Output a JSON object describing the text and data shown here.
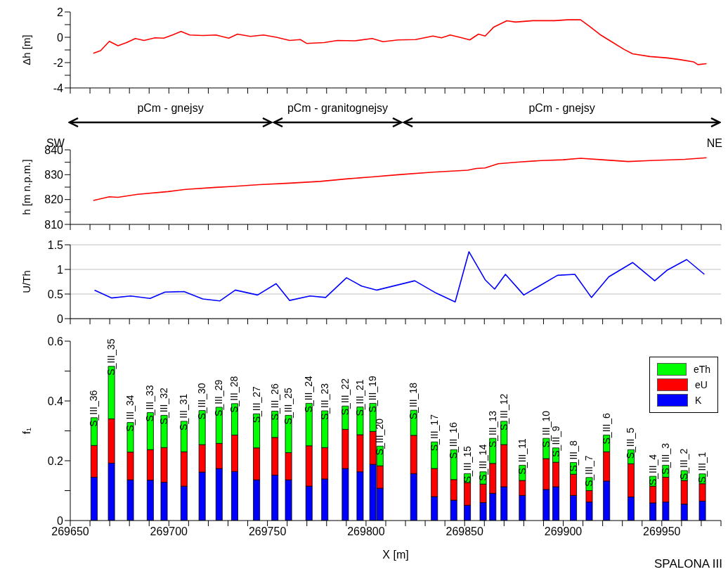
{
  "chart_data": [
    {
      "type": "line",
      "ylabel": "Δh [m]",
      "xlim": [
        269650,
        269980
      ],
      "ylim": [
        -4,
        2
      ],
      "tick_labels": "y",
      "xticks": [
        269650,
        {
          "value": 269660,
          "label": null
        },
        {
          "value": 269670,
          "label": null
        },
        {
          "value": 269680,
          "label": null
        },
        {
          "value": 269690,
          "label": null
        },
        269700,
        {
          "value": 269710,
          "label": null
        },
        {
          "value": 269720,
          "label": null
        },
        {
          "value": 269730,
          "label": null
        },
        {
          "value": 269740,
          "label": null
        },
        269750,
        {
          "value": 269760,
          "label": null
        },
        {
          "value": 269770,
          "label": null
        },
        {
          "value": 269780,
          "label": null
        },
        {
          "value": 269790,
          "label": null
        },
        269800,
        {
          "value": 269810,
          "label": null
        },
        {
          "value": 269820,
          "label": null
        },
        {
          "value": 269830,
          "label": null
        },
        {
          "value": 269840,
          "label": null
        },
        269850,
        {
          "value": 269860,
          "label": null
        },
        {
          "value": 269870,
          "label": null
        },
        {
          "value": 269880,
          "label": null
        },
        {
          "value": 269890,
          "label": null
        },
        269900,
        {
          "value": 269910,
          "label": null
        },
        {
          "value": 269920,
          "label": null
        },
        {
          "value": 269930,
          "label": null
        },
        {
          "value": 269940,
          "label": null
        },
        269950,
        {
          "value": 269960,
          "label": null
        },
        {
          "value": 269970,
          "label": null
        },
        {
          "value": 269980,
          "label": null
        }
      ],
      "yticks": [
        -4,
        {
          "value": -3,
          "label": null
        },
        -2,
        {
          "value": -1,
          "label": null
        },
        0,
        {
          "value": 1,
          "label": null
        },
        2
      ],
      "annotations": [
        "pCm - gnejsy",
        "pCm - granitognejsy",
        "pCm - gnejsy"
      ],
      "series": [
        {
          "color": "#ff0000",
          "x": [
            269661.7,
            269665.4,
            269669.8,
            269674.2,
            269678.6,
            269683,
            269687.4,
            269693,
            269697.4,
            269701.8,
            269706.2,
            269710.6,
            269717.2,
            269723.8,
            269730.4,
            269734.8,
            269741.4,
            269748,
            269754.6,
            269761.2,
            269766.7,
            269770,
            269778.8,
            269785.5,
            269794.3,
            269803.1,
            269808.6,
            269816.3,
            269825.1,
            269833.9,
            269838.3,
            269842.7,
            269849.3,
            269852.6,
            269857,
            269860.4,
            269864.8,
            269871.4,
            269875.8,
            269884.6,
            269895.6,
            269902.2,
            269908.8,
            269913.2,
            269918.7,
            269924.2,
            269930.8,
            269935.2,
            269944,
            269952.9,
            269959.5,
            269966.1,
            269968.3,
            269972.7
          ],
          "values": [
            -1.27,
            -1.06,
            -0.32,
            -0.67,
            -0.42,
            -0.1,
            -0.25,
            -0.04,
            -0.07,
            0.18,
            0.46,
            0.18,
            0.14,
            0.18,
            -0.07,
            0.25,
            0.07,
            0.18,
            0,
            -0.25,
            -0.18,
            -0.49,
            -0.42,
            -0.25,
            -0.28,
            -0.1,
            -0.35,
            -0.21,
            -0.18,
            0.1,
            -0.04,
            0.18,
            -0.07,
            -0.21,
            0.25,
            0.1,
            0.81,
            1.31,
            1.2,
            1.31,
            1.31,
            1.38,
            1.38,
            0.88,
            0.21,
            -0.32,
            -0.95,
            -1.31,
            -1.52,
            -1.63,
            -1.77,
            -1.94,
            -2.16,
            -2.08
          ]
        }
      ]
    },
    {
      "type": "line",
      "ylabel": "h [m n.p.m.]",
      "xlim": [
        269650,
        269980
      ],
      "ylim": [
        810,
        840
      ],
      "tick_labels": "y",
      "xticks": [
        269650,
        {
          "value": 269660,
          "label": null
        },
        {
          "value": 269670,
          "label": null
        },
        {
          "value": 269680,
          "label": null
        },
        {
          "value": 269690,
          "label": null
        },
        269700,
        {
          "value": 269710,
          "label": null
        },
        {
          "value": 269720,
          "label": null
        },
        {
          "value": 269730,
          "label": null
        },
        {
          "value": 269740,
          "label": null
        },
        269750,
        {
          "value": 269760,
          "label": null
        },
        {
          "value": 269770,
          "label": null
        },
        {
          "value": 269780,
          "label": null
        },
        {
          "value": 269790,
          "label": null
        },
        269800,
        {
          "value": 269810,
          "label": null
        },
        {
          "value": 269820,
          "label": null
        },
        {
          "value": 269830,
          "label": null
        },
        {
          "value": 269840,
          "label": null
        },
        269850,
        {
          "value": 269860,
          "label": null
        },
        {
          "value": 269870,
          "label": null
        },
        {
          "value": 269880,
          "label": null
        },
        {
          "value": 269890,
          "label": null
        },
        269900,
        {
          "value": 269910,
          "label": null
        },
        {
          "value": 269920,
          "label": null
        },
        {
          "value": 269930,
          "label": null
        },
        {
          "value": 269940,
          "label": null
        },
        269950,
        {
          "value": 269960,
          "label": null
        },
        {
          "value": 269970,
          "label": null
        },
        {
          "value": 269980,
          "label": null
        }
      ],
      "yticks": [
        810,
        {
          "value": 815,
          "label": null
        },
        820,
        {
          "value": 825,
          "label": null
        },
        830,
        {
          "value": 835,
          "label": null
        },
        840
      ],
      "annotations": [
        "SW",
        "NE"
      ],
      "series": [
        {
          "color": "#ff0000",
          "x": [
            269661.7,
            269669.8,
            269674.2,
            269684.1,
            269699.6,
            269708.4,
            269723.8,
            269732.6,
            269745.8,
            269761.2,
            269776.7,
            269789.9,
            269803.1,
            269816.3,
            269833.9,
            269851.5,
            269855.9,
            269860.4,
            269867,
            269878,
            269889,
            269900,
            269908.8,
            269919.8,
            269933,
            269944,
            269961.7,
            269972.7
          ],
          "values": [
            819.6,
            821.1,
            820.9,
            822.1,
            823.2,
            824.1,
            824.9,
            825.3,
            826.0,
            826.6,
            827.3,
            828.3,
            829.1,
            830.0,
            831.0,
            831.8,
            832.5,
            832.7,
            834.4,
            835.1,
            835.7,
            836.0,
            836.6,
            836.0,
            835.3,
            835.7,
            836.2,
            836.8
          ]
        }
      ]
    },
    {
      "type": "line",
      "ylabel": "U/Th",
      "xlim": [
        269650,
        269980
      ],
      "ylim": [
        0,
        1.5
      ],
      "tick_labels": "y",
      "grid": "y",
      "xticks": [
        269650,
        {
          "value": 269660,
          "label": null
        },
        {
          "value": 269670,
          "label": null
        },
        {
          "value": 269680,
          "label": null
        },
        {
          "value": 269690,
          "label": null
        },
        269700,
        {
          "value": 269710,
          "label": null
        },
        {
          "value": 269720,
          "label": null
        },
        {
          "value": 269730,
          "label": null
        },
        {
          "value": 269740,
          "label": null
        },
        269750,
        {
          "value": 269760,
          "label": null
        },
        {
          "value": 269770,
          "label": null
        },
        {
          "value": 269780,
          "label": null
        },
        {
          "value": 269790,
          "label": null
        },
        269800,
        {
          "value": 269810,
          "label": null
        },
        {
          "value": 269820,
          "label": null
        },
        {
          "value": 269830,
          "label": null
        },
        {
          "value": 269840,
          "label": null
        },
        269850,
        {
          "value": 269860,
          "label": null
        },
        {
          "value": 269870,
          "label": null
        },
        {
          "value": 269880,
          "label": null
        },
        {
          "value": 269890,
          "label": null
        },
        269900,
        {
          "value": 269910,
          "label": null
        },
        {
          "value": 269920,
          "label": null
        },
        {
          "value": 269930,
          "label": null
        },
        {
          "value": 269940,
          "label": null
        },
        269950,
        {
          "value": 269960,
          "label": null
        },
        {
          "value": 269970,
          "label": null
        },
        {
          "value": 269980,
          "label": null
        }
      ],
      "yticks": [
        0,
        0.5,
        1,
        1.5
      ],
      "series": [
        {
          "color": "#0000ff",
          "x": [
            269662.3,
            269670.9,
            269680.6,
            269690.5,
            269698,
            269707.7,
            269717.2,
            269725.8,
            269733.7,
            269745,
            269754.4,
            269761.2,
            269771.6,
            269779.5,
            269790.1,
            269797.8,
            269805.5,
            269824.7,
            269835.5,
            269845.2,
            269852.2,
            269860.4,
            269865.2,
            269870.7,
            269880,
            269897.1,
            269905.9,
            269914.3,
            269923.1,
            269935.2,
            269946.4,
            269952.9,
            269962.6,
            269971.6
          ],
          "values": [
            0.58,
            0.42,
            0.46,
            0.41,
            0.54,
            0.55,
            0.4,
            0.36,
            0.58,
            0.48,
            0.71,
            0.37,
            0.46,
            0.43,
            0.83,
            0.66,
            0.58,
            0.77,
            0.52,
            0.34,
            1.36,
            0.79,
            0.6,
            0.9,
            0.48,
            0.88,
            0.9,
            0.43,
            0.85,
            1.14,
            0.77,
            0.99,
            1.2,
            0.9
          ]
        }
      ]
    },
    {
      "type": "bar",
      "stacked": true,
      "ylabel": "f₁",
      "xlabel": "X [m]",
      "xlim": [
        269650,
        269980
      ],
      "ylim": [
        0,
        0.6
      ],
      "legend": "top right",
      "xticks": [
        269650,
        {
          "value": 269660,
          "label": null
        },
        {
          "value": 269670,
          "label": null
        },
        {
          "value": 269680,
          "label": null
        },
        {
          "value": 269690,
          "label": null
        },
        269700,
        {
          "value": 269710,
          "label": null
        },
        {
          "value": 269720,
          "label": null
        },
        {
          "value": 269730,
          "label": null
        },
        {
          "value": 269740,
          "label": null
        },
        269750,
        {
          "value": 269760,
          "label": null
        },
        {
          "value": 269770,
          "label": null
        },
        {
          "value": 269780,
          "label": null
        },
        {
          "value": 269790,
          "label": null
        },
        269800,
        {
          "value": 269810,
          "label": null
        },
        {
          "value": 269820,
          "label": null
        },
        {
          "value": 269830,
          "label": null
        },
        {
          "value": 269840,
          "label": null
        },
        269850,
        {
          "value": 269860,
          "label": null
        },
        {
          "value": 269870,
          "label": null
        },
        {
          "value": 269880,
          "label": null
        },
        {
          "value": 269890,
          "label": null
        },
        269900,
        {
          "value": 269910,
          "label": null
        },
        {
          "value": 269920,
          "label": null
        },
        {
          "value": 269930,
          "label": null
        },
        {
          "value": 269940,
          "label": null
        },
        269950,
        {
          "value": 269960,
          "label": null
        },
        {
          "value": 269970,
          "label": null
        },
        {
          "value": 269980,
          "label": null
        }
      ],
      "yticks": [
        0,
        {
          "value": 0.1,
          "label": null
        },
        0.2,
        {
          "value": 0.3,
          "label": null
        },
        0.4,
        {
          "value": 0.5,
          "label": null
        },
        0.6
      ],
      "x": [
        269661.9,
        269670.7,
        269680.3,
        269690.4,
        269697.4,
        269707.5,
        269716.7,
        269725.3,
        269733.2,
        269744.3,
        269753.6,
        269760.5,
        269770.9,
        269778.9,
        269789.3,
        269796.8,
        269803.3,
        269806.9,
        269824,
        269834.5,
        269844.3,
        269851.2,
        269859.2,
        269864.1,
        269869.8,
        269879.1,
        269891.2,
        269896.1,
        269905,
        269913,
        269921.8,
        269934.2,
        269945.3,
        269951.8,
        269961.2,
        269970.4
      ],
      "series": [
        {
          "name": "K",
          "color": "#0000ff",
          "values": [
            0.145,
            0.192,
            0.136,
            0.135,
            0.128,
            0.115,
            0.162,
            0.174,
            0.164,
            0.136,
            0.152,
            0.136,
            0.115,
            0.139,
            0.174,
            0.163,
            0.188,
            0.108,
            0.157,
            0.08,
            0.068,
            0.051,
            0.06,
            0.091,
            0.113,
            0.084,
            0.104,
            0.113,
            0.084,
            0.062,
            0.132,
            0.079,
            0.059,
            0.062,
            0.055,
            0.065
          ]
        },
        {
          "name": "eU",
          "color": "#ff0000",
          "values": [
            0.106,
            0.148,
            0.093,
            0.102,
            0.116,
            0.115,
            0.092,
            0.084,
            0.122,
            0.107,
            0.126,
            0.091,
            0.135,
            0.105,
            0.131,
            0.124,
            0.11,
            0.075,
            0.128,
            0.094,
            0.069,
            0.076,
            0.062,
            0.1,
            0.141,
            0.05,
            0.103,
            0.082,
            0.071,
            0.038,
            0.098,
            0.111,
            0.056,
            0.083,
            0.079,
            0.058
          ]
        },
        {
          "name": "eTh",
          "color": "#00ff00",
          "values": [
            0.093,
            0.176,
            0.099,
            0.124,
            0.108,
            0.102,
            0.114,
            0.121,
            0.105,
            0.114,
            0.088,
            0.125,
            0.142,
            0.123,
            0.078,
            0.093,
            0.094,
            0.066,
            0.084,
            0.089,
            0.1,
            0.03,
            0.041,
            0.084,
            0.078,
            0.051,
            0.068,
            0.048,
            0.039,
            0.044,
            0.056,
            0.047,
            0.033,
            0.04,
            0.033,
            0.033
          ]
        }
      ],
      "annotations": [
        {
          "text": "S_III_36",
          "x": 269661.9,
          "y": 0.344
        },
        {
          "text": "S_III_35",
          "x": 269670.7,
          "y": 0.516
        },
        {
          "text": "S_III_34",
          "x": 269680.3,
          "y": 0.328
        },
        {
          "text": "S_III_33",
          "x": 269690.4,
          "y": 0.361
        },
        {
          "text": "S_III_32",
          "x": 269697.4,
          "y": 0.352
        },
        {
          "text": "S_III_31",
          "x": 269707.5,
          "y": 0.332
        },
        {
          "text": "S_III_30",
          "x": 269716.7,
          "y": 0.368
        },
        {
          "text": "S_III_29",
          "x": 269725.3,
          "y": 0.379
        },
        {
          "text": "S_III_28",
          "x": 269733.2,
          "y": 0.391
        },
        {
          "text": "S_III_27",
          "x": 269744.3,
          "y": 0.357
        },
        {
          "text": "S_III_26",
          "x": 269753.6,
          "y": 0.366
        },
        {
          "text": "S_III_25",
          "x": 269760.5,
          "y": 0.352
        },
        {
          "text": "S_III_24",
          "x": 269770.9,
          "y": 0.392
        },
        {
          "text": "S_III_23",
          "x": 269778.9,
          "y": 0.367
        },
        {
          "text": "S_III_22",
          "x": 269789.3,
          "y": 0.383
        },
        {
          "text": "S_III_21",
          "x": 269796.8,
          "y": 0.38
        },
        {
          "text": "S_III_19",
          "x": 269803.3,
          "y": 0.392
        },
        {
          "text": "S_III_20",
          "x": 269806.9,
          "y": 0.249
        },
        {
          "text": "S_III_18",
          "x": 269824,
          "y": 0.369
        },
        {
          "text": "S_III_17",
          "x": 269834.5,
          "y": 0.263
        },
        {
          "text": "S_III_16",
          "x": 269844.3,
          "y": 0.237
        },
        {
          "text": "S_III_15",
          "x": 269851.2,
          "y": 0.157
        },
        {
          "text": "S_III_14",
          "x": 269859.2,
          "y": 0.163
        },
        {
          "text": "S_III_13",
          "x": 269864.1,
          "y": 0.275
        },
        {
          "text": "S_III_12",
          "x": 269869.8,
          "y": 0.332
        },
        {
          "text": "S_III_11",
          "x": 269879.1,
          "y": 0.185
        },
        {
          "text": "S_III_10",
          "x": 269891.2,
          "y": 0.275
        },
        {
          "text": "S_III_9",
          "x": 269896.1,
          "y": 0.243
        },
        {
          "text": "S_III_8",
          "x": 269905,
          "y": 0.194
        },
        {
          "text": "S_III_7",
          "x": 269913,
          "y": 0.144
        },
        {
          "text": "S_III_6",
          "x": 269921.8,
          "y": 0.286
        },
        {
          "text": "S_III_5",
          "x": 269934.2,
          "y": 0.237
        },
        {
          "text": "S_III_4",
          "x": 269945.3,
          "y": 0.148
        },
        {
          "text": "S_III_3",
          "x": 269951.8,
          "y": 0.185
        },
        {
          "text": "S_III_2",
          "x": 269961.2,
          "y": 0.167
        },
        {
          "text": "S_III_1",
          "x": 269970.4,
          "y": 0.156
        },
        "SPALONA III"
      ]
    }
  ]
}
